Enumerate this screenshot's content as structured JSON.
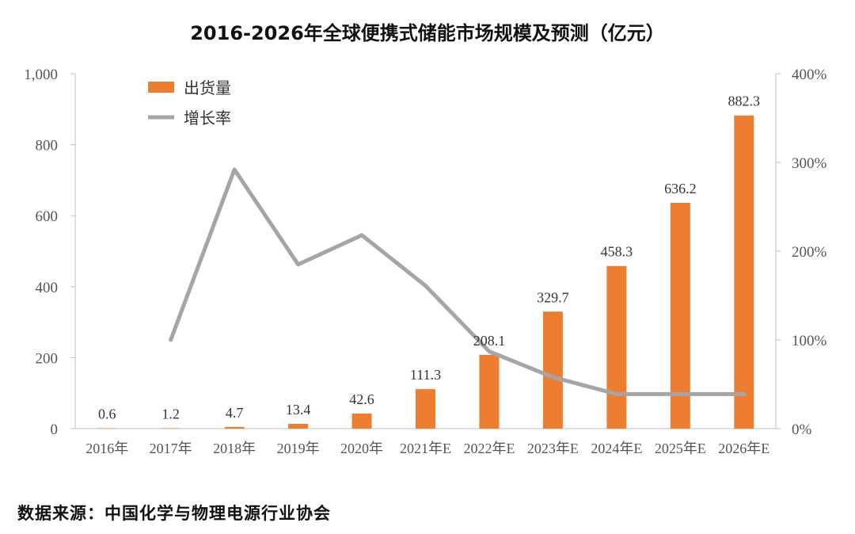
{
  "chart_data": {
    "type": "bar",
    "title": "2016-2026年全球便携式储能市场规模及预测（亿元）",
    "categories": [
      "2016年",
      "2017年",
      "2018年",
      "2019年",
      "2020年",
      "2021年E",
      "2022年E",
      "2023年E",
      "2024年E",
      "2025年E",
      "2026年E"
    ],
    "series": [
      {
        "name": "出货量",
        "type": "bar",
        "axis": "left",
        "color": "#ED7D31",
        "values": [
          0.6,
          1.2,
          4.7,
          13.4,
          42.6,
          111.3,
          208.1,
          329.7,
          458.3,
          636.2,
          882.3
        ],
        "labels": [
          "0.6",
          "1.2",
          "4.7",
          "13.4",
          "42.6",
          "111.3",
          "208.1",
          "329.7",
          "458.3",
          "636.2",
          "882.3"
        ]
      },
      {
        "name": "增长率",
        "type": "line",
        "axis": "right",
        "color": "#A5A5A5",
        "values": [
          null,
          1.0,
          2.92,
          1.85,
          2.18,
          1.61,
          0.87,
          0.58,
          0.39,
          0.39,
          0.39
        ]
      }
    ],
    "y_left": {
      "min": 0,
      "max": 1000,
      "ticks": [
        "0",
        "200",
        "400",
        "600",
        "800",
        "1,000"
      ]
    },
    "y_right": {
      "min": 0,
      "max": 4,
      "ticks": [
        "0%",
        "100%",
        "200%",
        "300%",
        "400%"
      ]
    },
    "grid": false,
    "legend": "top-left"
  },
  "source": "数据来源：中国化学与物理电源行业协会"
}
